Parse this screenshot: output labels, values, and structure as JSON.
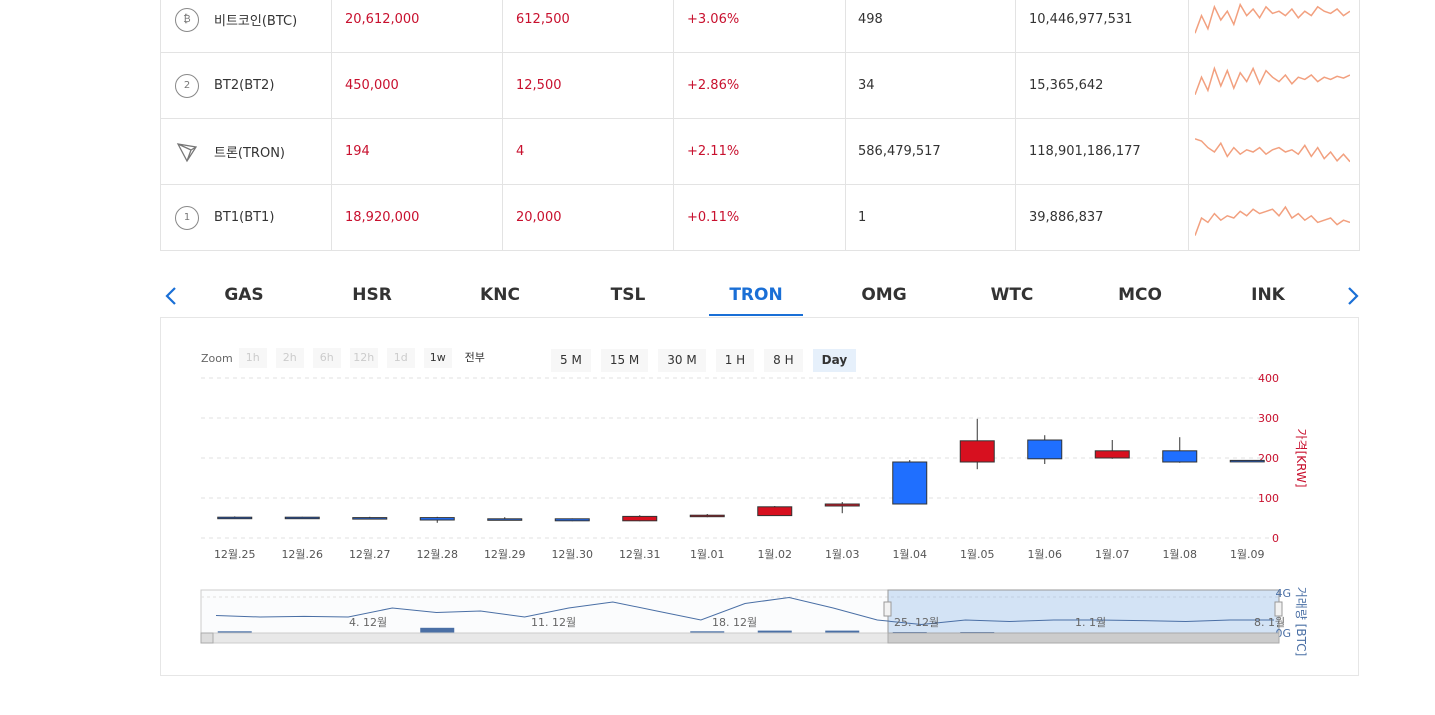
{
  "table": {
    "rows": [
      {
        "name": "비트코인(BTC)",
        "icon": "bitcoin-icon",
        "icon_glyph": "₿",
        "price": "20,612,000",
        "diff": "612,500",
        "rate": "+3.06%",
        "volume": "498",
        "amount": "10,446,977,531"
      },
      {
        "name": "BT2(BT2)",
        "icon": "bt2-icon",
        "icon_glyph": "2",
        "price": "450,000",
        "diff": "12,500",
        "rate": "+2.86%",
        "volume": "34",
        "amount": "15,365,642"
      },
      {
        "name": "트론(TRON)",
        "icon": "tron-icon",
        "icon_glyph": "",
        "price": "194",
        "diff": "4",
        "rate": "+2.11%",
        "volume": "586,479,517",
        "amount": "118,901,186,177"
      },
      {
        "name": "BT1(BT1)",
        "icon": "bt1-icon",
        "icon_glyph": "1",
        "price": "18,920,000",
        "diff": "20,000",
        "rate": "+0.11%",
        "volume": "1",
        "amount": "39,886,837"
      }
    ]
  },
  "tabs": [
    "GAS",
    "HSR",
    "KNC",
    "TSL",
    "TRON",
    "OMG",
    "WTC",
    "MCO",
    "INK"
  ],
  "active_tab": "TRON",
  "zoom": {
    "label": "Zoom",
    "buttons": [
      "1h",
      "2h",
      "6h",
      "12h",
      "1d",
      "1w",
      "전부"
    ]
  },
  "periods": [
    "5 M",
    "15 M",
    "30 M",
    "1 H",
    "8 H",
    "Day"
  ],
  "active_period": "Day",
  "colors": {
    "up": "#d7101f",
    "down": "#1f6fff",
    "accent": "#1a6fd6",
    "sparkline": "#f2a07f",
    "volume_bar": "#4a6fa5"
  },
  "chart_data": {
    "type": "candlestick",
    "categories": [
      "12월.25",
      "12월.26",
      "12월.27",
      "12월.28",
      "12월.29",
      "12월.30",
      "12월.31",
      "1월.01",
      "1월.02",
      "1월.03",
      "1월.04",
      "1월.05",
      "1월.06",
      "1월.07",
      "1월.08",
      "1월.09"
    ],
    "candles": [
      {
        "open": 52,
        "close": 50,
        "high": 54,
        "low": 48
      },
      {
        "open": 52,
        "close": 50,
        "high": 53,
        "low": 49
      },
      {
        "open": 51,
        "close": 50,
        "high": 53,
        "low": 49
      },
      {
        "open": 51,
        "close": 45,
        "high": 53,
        "low": 38
      },
      {
        "open": 48,
        "close": 45,
        "high": 52,
        "low": 44
      },
      {
        "open": 48,
        "close": 43,
        "high": 49,
        "low": 42
      },
      {
        "open": 43,
        "close": 54,
        "high": 57,
        "low": 42
      },
      {
        "open": 54,
        "close": 57,
        "high": 60,
        "low": 52
      },
      {
        "open": 56,
        "close": 78,
        "high": 80,
        "low": 55
      },
      {
        "open": 80,
        "close": 85,
        "high": 90,
        "low": 62
      },
      {
        "open": 190,
        "close": 85,
        "high": 195,
        "low": 84
      },
      {
        "open": 190,
        "close": 243,
        "high": 298,
        "low": 172
      },
      {
        "open": 245,
        "close": 198,
        "high": 257,
        "low": 185
      },
      {
        "open": 200,
        "close": 218,
        "high": 245,
        "low": 198
      },
      {
        "open": 218,
        "close": 190,
        "high": 252,
        "low": 188
      },
      {
        "open": 194,
        "close": 192,
        "high": 195,
        "low": 191
      }
    ],
    "y_ticks": [
      0,
      100,
      200,
      300,
      400
    ],
    "ylim": [
      0,
      400
    ],
    "ylabel": "가격[KRW]",
    "volume_label": "거래량 [BTC]",
    "volume_ticks": [
      "4G",
      "0G"
    ],
    "navigator_labels": [
      "4. 12월",
      "11. 12월",
      "18. 12월",
      "25. 12월",
      "1. 1월",
      "8. 1월"
    ],
    "volume_values": [
      0.55,
      0.4,
      0.15,
      0.8,
      0.4,
      0.25,
      0.4,
      0.55,
      0.6,
      0.6,
      0.5,
      0.5,
      0.25,
      0.15,
      0.25,
      0.0
    ]
  },
  "sparklines": [
    [
      20,
      60,
      30,
      80,
      50,
      70,
      40,
      85,
      60,
      75,
      55,
      80,
      65,
      70,
      60,
      75,
      55,
      70,
      60,
      80,
      70,
      65,
      75,
      60,
      70
    ],
    [
      30,
      70,
      40,
      90,
      50,
      85,
      45,
      80,
      60,
      90,
      55,
      85,
      70,
      60,
      75,
      55,
      70,
      65,
      75,
      60,
      70,
      65,
      72,
      68,
      75
    ],
    [
      80,
      75,
      60,
      50,
      70,
      40,
      60,
      45,
      55,
      50,
      60,
      45,
      55,
      60,
      50,
      55,
      45,
      65,
      40,
      60,
      35,
      50,
      30,
      45,
      28
    ],
    [
      10,
      50,
      40,
      60,
      45,
      55,
      50,
      65,
      55,
      70,
      60,
      65,
      70,
      55,
      75,
      50,
      60,
      45,
      55,
      40,
      45,
      50,
      35,
      45,
      40
    ]
  ]
}
